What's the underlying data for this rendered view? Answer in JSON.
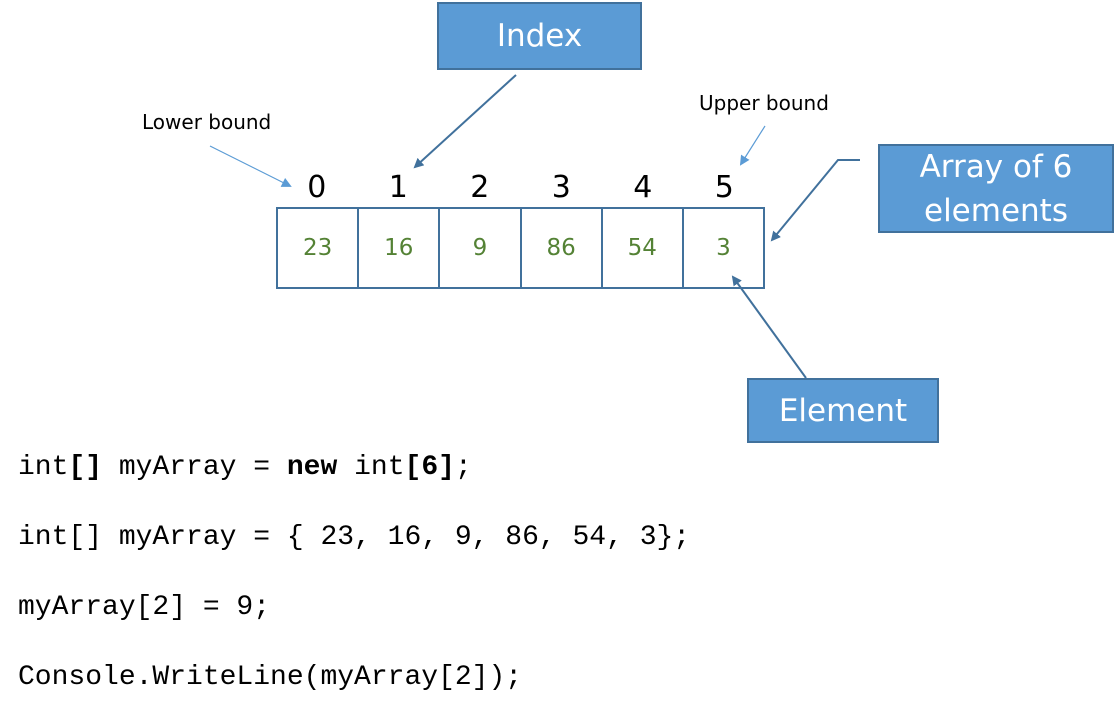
{
  "labels": {
    "index": "Index",
    "array_of_6_line1": "Array of 6",
    "array_of_6_line2": "elements",
    "element": "Element",
    "lower_bound": "Lower bound",
    "upper_bound": "Upper bound"
  },
  "array": {
    "indices": [
      "0",
      "1",
      "2",
      "3",
      "4",
      "5"
    ],
    "values": [
      "23",
      "16",
      "9",
      "86",
      "54",
      "3"
    ]
  },
  "code": {
    "line1": {
      "a": "int",
      "b": "[]",
      "c": " myArray = ",
      "d": "new",
      "e": " int",
      "f": "[6]",
      "g": ";"
    },
    "line2": "int[] myArray = { 23, 16, 9, 86, 54, 3};",
    "line3": "myArray[2] = 9;",
    "line4": "Console.WriteLine(myArray[2]);"
  },
  "colors": {
    "callout_fill": "#5b9bd5",
    "callout_border": "#41719c",
    "value_text": "#548235",
    "arrow_dark": "#41719c",
    "arrow_light": "#5b9bd5"
  }
}
